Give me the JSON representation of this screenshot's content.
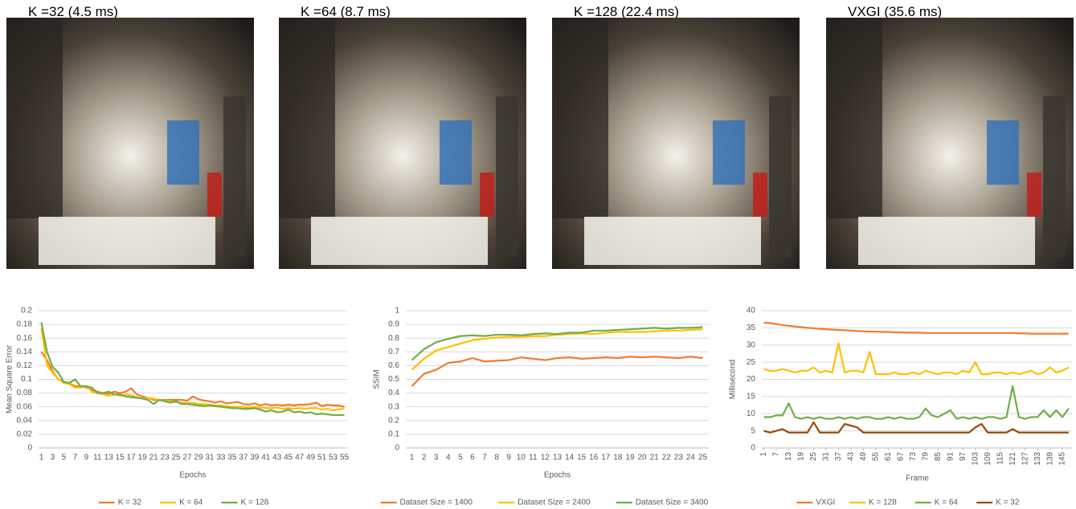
{
  "panels": [
    {
      "title": "K =32 (4.5 ms)"
    },
    {
      "title": "K =64 (8.7 ms)"
    },
    {
      "title": "K =128 (22.4 ms)"
    },
    {
      "title": "VXGI (35.6 ms)"
    }
  ],
  "chart_data": [
    {
      "type": "line",
      "x_label": "Epochs",
      "y_label": "Mean Square Error",
      "categories": [
        "1",
        null,
        "3",
        null,
        "5",
        null,
        "7",
        null,
        "9",
        null,
        "11",
        null,
        "13",
        null,
        "15",
        null,
        "17",
        null,
        "19",
        null,
        "21",
        null,
        "23",
        null,
        "25",
        null,
        "27",
        null,
        "29",
        null,
        "31",
        null,
        "33",
        null,
        "35",
        null,
        "37",
        null,
        "39",
        null,
        "41",
        null,
        "43",
        null,
        "45",
        null,
        "47",
        null,
        "49",
        null,
        "51",
        null,
        "53",
        null,
        "55"
      ],
      "ylim": [
        0,
        0.2
      ],
      "yticks": [
        0,
        0.02,
        0.04,
        0.06,
        0.08,
        0.1,
        0.12,
        0.14,
        0.16,
        0.18,
        0.2
      ],
      "grid": true,
      "legend": "bottom",
      "series": [
        {
          "name": "K = 32",
          "color": "#ED7D31",
          "values": [
            0.14,
            0.128,
            0.112,
            0.1,
            0.096,
            0.094,
            0.09,
            0.09,
            0.088,
            0.085,
            0.082,
            0.08,
            0.079,
            0.082,
            0.08,
            0.082,
            0.087,
            0.078,
            0.075,
            0.073,
            0.07,
            0.07,
            0.07,
            0.07,
            0.07,
            0.07,
            0.069,
            0.075,
            0.071,
            0.069,
            0.068,
            0.066,
            0.068,
            0.065,
            0.066,
            0.067,
            0.064,
            0.063,
            0.065,
            0.062,
            0.064,
            0.062,
            0.063,
            0.062,
            0.063,
            0.062,
            0.063,
            0.063,
            0.064,
            0.066,
            0.061,
            0.063,
            0.062,
            0.062,
            0.06
          ]
        },
        {
          "name": "K = 64",
          "color": "#FFC000",
          "values": [
            0.175,
            0.12,
            0.11,
            0.1,
            0.095,
            0.093,
            0.088,
            0.088,
            0.09,
            0.082,
            0.08,
            0.078,
            0.076,
            0.078,
            0.076,
            0.078,
            0.077,
            0.074,
            0.072,
            0.073,
            0.072,
            0.07,
            0.069,
            0.068,
            0.067,
            0.066,
            0.066,
            0.066,
            0.064,
            0.064,
            0.063,
            0.062,
            0.062,
            0.061,
            0.06,
            0.06,
            0.06,
            0.059,
            0.06,
            0.059,
            0.058,
            0.058,
            0.059,
            0.057,
            0.058,
            0.057,
            0.058,
            0.057,
            0.058,
            0.058,
            0.056,
            0.057,
            0.055,
            0.056,
            0.058
          ]
        },
        {
          "name": "K = 128",
          "color": "#70AD47",
          "values": [
            0.183,
            0.14,
            0.118,
            0.11,
            0.096,
            0.095,
            0.1,
            0.09,
            0.09,
            0.088,
            0.08,
            0.08,
            0.082,
            0.078,
            0.078,
            0.075,
            0.074,
            0.073,
            0.072,
            0.07,
            0.064,
            0.07,
            0.068,
            0.066,
            0.068,
            0.064,
            0.064,
            0.063,
            0.062,
            0.061,
            0.062,
            0.061,
            0.06,
            0.059,
            0.058,
            0.058,
            0.057,
            0.057,
            0.058,
            0.056,
            0.053,
            0.055,
            0.052,
            0.053,
            0.056,
            0.052,
            0.053,
            0.051,
            0.052,
            0.049,
            0.05,
            0.049,
            0.048,
            0.048,
            0.048
          ]
        }
      ]
    },
    {
      "type": "line",
      "x_label": "Epochs",
      "y_label": "SSIM",
      "categories": [
        "1",
        "2",
        "3",
        "4",
        "5",
        "6",
        "7",
        "8",
        "9",
        "10",
        "11",
        "12",
        "13",
        "14",
        "15",
        "16",
        "17",
        "18",
        "19",
        "20",
        "21",
        "22",
        "23",
        "24",
        "25"
      ],
      "ylim": [
        0,
        1
      ],
      "yticks": [
        0,
        0.1,
        0.2,
        0.3,
        0.4,
        0.5,
        0.6,
        0.7,
        0.8,
        0.9,
        1
      ],
      "grid": true,
      "legend": "bottom",
      "series": [
        {
          "name": "Dataset Size = 1400",
          "color": "#ED7D31",
          "values": [
            0.45,
            0.54,
            0.57,
            0.62,
            0.63,
            0.655,
            0.63,
            0.635,
            0.64,
            0.66,
            0.65,
            0.64,
            0.655,
            0.66,
            0.65,
            0.655,
            0.66,
            0.655,
            0.665,
            0.66,
            0.665,
            0.66,
            0.655,
            0.665,
            0.655
          ]
        },
        {
          "name": "Dataset Size = 2400",
          "color": "#FFC000",
          "values": [
            0.57,
            0.65,
            0.71,
            0.735,
            0.76,
            0.785,
            0.795,
            0.805,
            0.81,
            0.81,
            0.815,
            0.815,
            0.825,
            0.83,
            0.835,
            0.83,
            0.84,
            0.845,
            0.845,
            0.845,
            0.85,
            0.855,
            0.855,
            0.86,
            0.865
          ]
        },
        {
          "name": "Dataset Size = 3400",
          "color": "#70AD47",
          "values": [
            0.64,
            0.72,
            0.77,
            0.795,
            0.815,
            0.82,
            0.815,
            0.825,
            0.825,
            0.82,
            0.83,
            0.835,
            0.83,
            0.84,
            0.84,
            0.855,
            0.855,
            0.86,
            0.865,
            0.87,
            0.875,
            0.87,
            0.875,
            0.875,
            0.88
          ]
        }
      ]
    },
    {
      "type": "line",
      "x_label": "Frame",
      "y_label": "Millisecond",
      "x": [
        1,
        4,
        7,
        10,
        13,
        16,
        19,
        22,
        25,
        28,
        31,
        34,
        37,
        40,
        43,
        46,
        49,
        52,
        55,
        58,
        61,
        64,
        67,
        70,
        73,
        76,
        79,
        82,
        85,
        88,
        91,
        94,
        97,
        100,
        103,
        106,
        109,
        112,
        115,
        118,
        121,
        124,
        127,
        130,
        133,
        136,
        139,
        142,
        145,
        148
      ],
      "xlim": [
        0,
        150
      ],
      "xticks": [
        1,
        7,
        13,
        19,
        25,
        31,
        37,
        43,
        49,
        55,
        61,
        67,
        73,
        79,
        85,
        91,
        97,
        103,
        109,
        115,
        121,
        127,
        133,
        139,
        145
      ],
      "ylim": [
        0,
        40
      ],
      "yticks": [
        0,
        5,
        10,
        15,
        20,
        25,
        30,
        35,
        40
      ],
      "grid": true,
      "legend": "bottom",
      "series": [
        {
          "name": "VXGI",
          "color": "#ED7D31",
          "values": [
            36.5,
            36.4,
            36.1,
            35.8,
            35.6,
            35.4,
            35.2,
            35,
            34.9,
            34.7,
            34.6,
            34.5,
            34.4,
            34.3,
            34.2,
            34.1,
            34,
            33.9,
            33.9,
            33.8,
            33.8,
            33.7,
            33.7,
            33.6,
            33.6,
            33.6,
            33.5,
            33.5,
            33.5,
            33.5,
            33.5,
            33.5,
            33.5,
            33.5,
            33.5,
            33.5,
            33.5,
            33.5,
            33.5,
            33.5,
            33.5,
            33.4,
            33.4,
            33.3,
            33.3,
            33.3,
            33.3,
            33.3,
            33.3,
            33.3
          ]
        },
        {
          "name": "K = 128",
          "color": "#FFC000",
          "values": [
            23,
            22.5,
            22.5,
            23,
            22.5,
            22,
            22.5,
            22.5,
            23.5,
            22,
            22.5,
            22,
            30.5,
            22,
            22.5,
            22.5,
            22,
            28,
            21.5,
            21.5,
            21.5,
            22,
            21.5,
            21.5,
            22,
            21.5,
            22.5,
            22,
            21.5,
            22,
            22,
            21.5,
            22.5,
            22,
            25,
            21.5,
            21.5,
            22,
            22,
            21.5,
            22,
            21.5,
            22,
            22.5,
            21.5,
            22,
            23.5,
            22,
            22.5,
            23.5
          ]
        },
        {
          "name": "K = 64",
          "color": "#70AD47",
          "values": [
            9,
            9,
            9.5,
            9.5,
            13,
            9,
            8.5,
            9,
            8.5,
            9,
            8.5,
            8.5,
            9,
            8.5,
            9,
            8.5,
            9,
            9,
            8.5,
            8.5,
            9,
            8.5,
            9,
            8.5,
            8.5,
            9,
            11.5,
            9.5,
            9,
            10,
            11,
            8.5,
            9,
            8.5,
            9,
            8.5,
            9,
            9,
            8.5,
            9,
            18,
            9,
            8.5,
            9,
            9,
            11,
            9,
            11,
            9,
            11.5
          ]
        },
        {
          "name": "K = 32",
          "color": "#9E480E",
          "values": [
            5,
            4.5,
            5,
            5.5,
            4.5,
            4.5,
            4.5,
            4.5,
            7.5,
            4.5,
            4.5,
            4.5,
            4.5,
            7,
            6.5,
            6,
            4.5,
            4.5,
            4.5,
            4.5,
            4.5,
            4.5,
            4.5,
            4.5,
            4.5,
            4.5,
            4.5,
            4.5,
            4.5,
            4.5,
            4.5,
            4.5,
            4.5,
            4.5,
            6,
            7,
            4.5,
            4.5,
            4.5,
            4.5,
            5.5,
            4.5,
            4.5,
            4.5,
            4.5,
            4.5,
            4.5,
            4.5,
            4.5,
            4.5
          ]
        }
      ]
    }
  ]
}
